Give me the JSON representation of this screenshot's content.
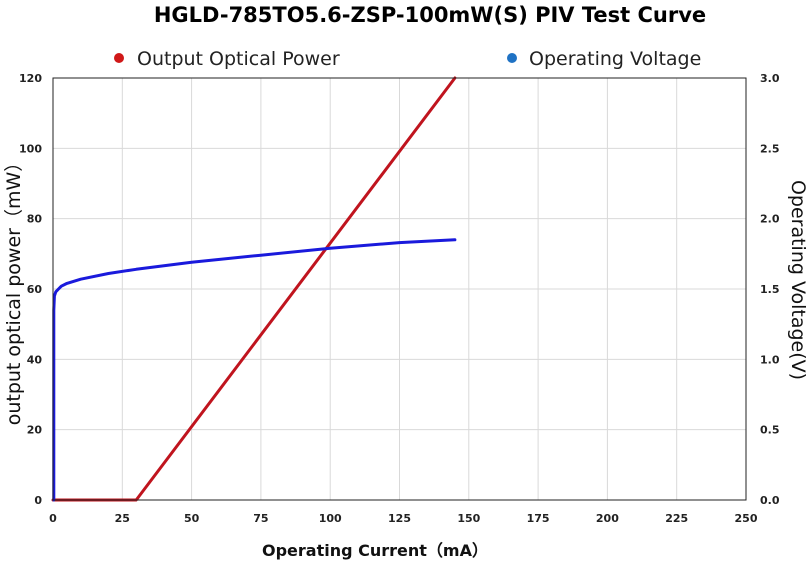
{
  "chart_data": {
    "type": "line",
    "title": "HGLD-785TO5.6-ZSP-100mW(S) PIV Test Curve",
    "xlabel": "Operating Current（mA）",
    "ylabel": "output optical power（mW）",
    "y2label": "Operating Voltage(V)",
    "xlim": [
      0,
      250
    ],
    "ylim": [
      0,
      120
    ],
    "y2lim": [
      0,
      3.0
    ],
    "x_ticks": [
      "0",
      "25",
      "50",
      "75",
      "100",
      "125",
      "150",
      "175",
      "200",
      "225",
      "250"
    ],
    "y_ticks": [
      "0",
      "20",
      "40",
      "60",
      "80",
      "100",
      "120"
    ],
    "y2_ticks": [
      "0.0",
      "0.5",
      "1.0",
      "1.5",
      "2.0",
      "2.5",
      "3.0"
    ],
    "grid": true,
    "legend_position": "top",
    "series": [
      {
        "name": "Output Optical Power",
        "axis": "left",
        "color": "#c0141e",
        "x": [
          0,
          30,
          145
        ],
        "y": [
          0,
          0,
          120
        ]
      },
      {
        "name": "Operating Voltage",
        "axis": "right",
        "color": "#1a1adc",
        "legend_color": "#1f72c4",
        "x": [
          0.3,
          0.3,
          0.5,
          1,
          2,
          3,
          5,
          10,
          20,
          30,
          50,
          75,
          100,
          125,
          145
        ],
        "y": [
          0,
          1.35,
          1.45,
          1.48,
          1.5,
          1.52,
          1.54,
          1.57,
          1.61,
          1.64,
          1.69,
          1.74,
          1.79,
          1.83,
          1.85
        ]
      }
    ]
  }
}
